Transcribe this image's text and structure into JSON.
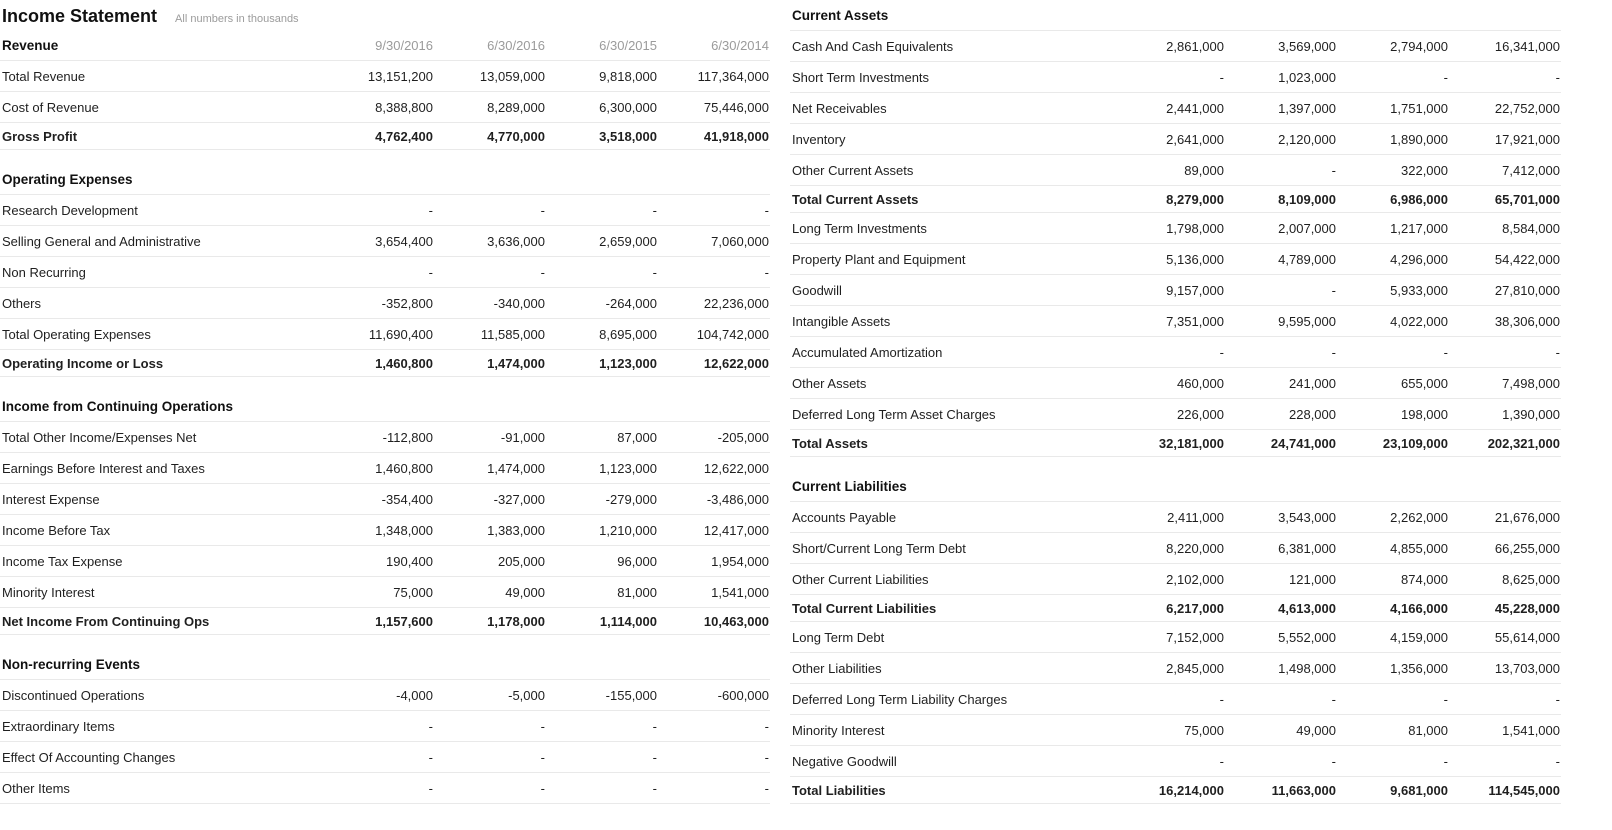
{
  "page": {
    "title": "Income Statement",
    "subtitle": "All numbers in thousands"
  },
  "columns": [
    "9/30/2016",
    "6/30/2016",
    "6/30/2015",
    "6/30/2014"
  ],
  "left_sections": [
    {
      "header": "Revenue",
      "dates_in_header": true,
      "rows": [
        {
          "label": "Total Revenue",
          "bold": false,
          "values": [
            "13,151,200",
            "13,059,000",
            "9,818,000",
            "117,364,000"
          ]
        },
        {
          "label": "Cost of Revenue",
          "bold": false,
          "values": [
            "8,388,800",
            "8,289,000",
            "6,300,000",
            "75,446,000"
          ]
        },
        {
          "label": "Gross Profit",
          "bold": true,
          "values": [
            "4,762,400",
            "4,770,000",
            "3,518,000",
            "41,918,000"
          ]
        }
      ]
    },
    {
      "header": "Operating Expenses",
      "dates_in_header": false,
      "rows": [
        {
          "label": "Research Development",
          "bold": false,
          "values": [
            "-",
            "-",
            "-",
            "-"
          ]
        },
        {
          "label": "Selling General and Administrative",
          "bold": false,
          "values": [
            "3,654,400",
            "3,636,000",
            "2,659,000",
            "7,060,000"
          ]
        },
        {
          "label": "Non Recurring",
          "bold": false,
          "values": [
            "-",
            "-",
            "-",
            "-"
          ]
        },
        {
          "label": "Others",
          "bold": false,
          "values": [
            "-352,800",
            "-340,000",
            "-264,000",
            "22,236,000"
          ]
        },
        {
          "label": "Total Operating Expenses",
          "bold": false,
          "values": [
            "11,690,400",
            "11,585,000",
            "8,695,000",
            "104,742,000"
          ]
        },
        {
          "label": "Operating Income or Loss",
          "bold": true,
          "values": [
            "1,460,800",
            "1,474,000",
            "1,123,000",
            "12,622,000"
          ]
        }
      ]
    },
    {
      "header": "Income from Continuing Operations",
      "dates_in_header": false,
      "rows": [
        {
          "label": "Total Other Income/Expenses Net",
          "bold": false,
          "values": [
            "-112,800",
            "-91,000",
            "87,000",
            "-205,000"
          ]
        },
        {
          "label": "Earnings Before Interest and Taxes",
          "bold": false,
          "values": [
            "1,460,800",
            "1,474,000",
            "1,123,000",
            "12,622,000"
          ]
        },
        {
          "label": "Interest Expense",
          "bold": false,
          "values": [
            "-354,400",
            "-327,000",
            "-279,000",
            "-3,486,000"
          ]
        },
        {
          "label": "Income Before Tax",
          "bold": false,
          "values": [
            "1,348,000",
            "1,383,000",
            "1,210,000",
            "12,417,000"
          ]
        },
        {
          "label": "Income Tax Expense",
          "bold": false,
          "values": [
            "190,400",
            "205,000",
            "96,000",
            "1,954,000"
          ]
        },
        {
          "label": "Minority Interest",
          "bold": false,
          "values": [
            "75,000",
            "49,000",
            "81,000",
            "1,541,000"
          ]
        },
        {
          "label": "Net Income From Continuing Ops",
          "bold": true,
          "values": [
            "1,157,600",
            "1,178,000",
            "1,114,000",
            "10,463,000"
          ]
        }
      ]
    },
    {
      "header": "Non-recurring Events",
      "dates_in_header": false,
      "rows": [
        {
          "label": "Discontinued Operations",
          "bold": false,
          "values": [
            "-4,000",
            "-5,000",
            "-155,000",
            "-600,000"
          ]
        },
        {
          "label": "Extraordinary Items",
          "bold": false,
          "values": [
            "-",
            "-",
            "-",
            "-"
          ]
        },
        {
          "label": "Effect Of Accounting Changes",
          "bold": false,
          "values": [
            "-",
            "-",
            "-",
            "-"
          ]
        },
        {
          "label": "Other Items",
          "bold": false,
          "values": [
            "-",
            "-",
            "-",
            "-"
          ]
        }
      ]
    }
  ],
  "right_sections": [
    {
      "header": "Current Assets",
      "dates_in_header": false,
      "rows": [
        {
          "label": "Cash And Cash Equivalents",
          "bold": false,
          "values": [
            "2,861,000",
            "3,569,000",
            "2,794,000",
            "16,341,000"
          ]
        },
        {
          "label": "Short Term Investments",
          "bold": false,
          "values": [
            "-",
            "1,023,000",
            "-",
            "-"
          ]
        },
        {
          "label": "Net Receivables",
          "bold": false,
          "values": [
            "2,441,000",
            "1,397,000",
            "1,751,000",
            "22,752,000"
          ]
        },
        {
          "label": "Inventory",
          "bold": false,
          "values": [
            "2,641,000",
            "2,120,000",
            "1,890,000",
            "17,921,000"
          ]
        },
        {
          "label": "Other Current Assets",
          "bold": false,
          "values": [
            "89,000",
            "-",
            "322,000",
            "7,412,000"
          ]
        },
        {
          "label": "Total Current Assets",
          "bold": true,
          "values": [
            "8,279,000",
            "8,109,000",
            "6,986,000",
            "65,701,000"
          ]
        },
        {
          "label": "Long Term Investments",
          "bold": false,
          "values": [
            "1,798,000",
            "2,007,000",
            "1,217,000",
            "8,584,000"
          ]
        },
        {
          "label": "Property Plant and Equipment",
          "bold": false,
          "values": [
            "5,136,000",
            "4,789,000",
            "4,296,000",
            "54,422,000"
          ]
        },
        {
          "label": "Goodwill",
          "bold": false,
          "values": [
            "9,157,000",
            "-",
            "5,933,000",
            "27,810,000"
          ]
        },
        {
          "label": "Intangible Assets",
          "bold": false,
          "values": [
            "7,351,000",
            "9,595,000",
            "4,022,000",
            "38,306,000"
          ]
        },
        {
          "label": "Accumulated Amortization",
          "bold": false,
          "values": [
            "-",
            "-",
            "-",
            "-"
          ]
        },
        {
          "label": "Other Assets",
          "bold": false,
          "values": [
            "460,000",
            "241,000",
            "655,000",
            "7,498,000"
          ]
        },
        {
          "label": "Deferred Long Term Asset Charges",
          "bold": false,
          "values": [
            "226,000",
            "228,000",
            "198,000",
            "1,390,000"
          ]
        },
        {
          "label": "Total Assets",
          "bold": true,
          "values": [
            "32,181,000",
            "24,741,000",
            "23,109,000",
            "202,321,000"
          ]
        }
      ]
    },
    {
      "header": "Current Liabilities",
      "dates_in_header": false,
      "rows": [
        {
          "label": "Accounts Payable",
          "bold": false,
          "values": [
            "2,411,000",
            "3,543,000",
            "2,262,000",
            "21,676,000"
          ]
        },
        {
          "label": "Short/Current Long Term Debt",
          "bold": false,
          "values": [
            "8,220,000",
            "6,381,000",
            "4,855,000",
            "66,255,000"
          ]
        },
        {
          "label": "Other Current Liabilities",
          "bold": false,
          "values": [
            "2,102,000",
            "121,000",
            "874,000",
            "8,625,000"
          ]
        },
        {
          "label": "Total Current Liabilities",
          "bold": true,
          "values": [
            "6,217,000",
            "4,613,000",
            "4,166,000",
            "45,228,000"
          ]
        },
        {
          "label": "Long Term Debt",
          "bold": false,
          "values": [
            "7,152,000",
            "5,552,000",
            "4,159,000",
            "55,614,000"
          ]
        },
        {
          "label": "Other Liabilities",
          "bold": false,
          "values": [
            "2,845,000",
            "1,498,000",
            "1,356,000",
            "13,703,000"
          ]
        },
        {
          "label": "Deferred Long Term Liability Charges",
          "bold": false,
          "values": [
            "-",
            "-",
            "-",
            "-"
          ]
        },
        {
          "label": "Minority Interest",
          "bold": false,
          "values": [
            "75,000",
            "49,000",
            "81,000",
            "1,541,000"
          ]
        },
        {
          "label": "Negative Goodwill",
          "bold": false,
          "values": [
            "-",
            "-",
            "-",
            "-"
          ]
        },
        {
          "label": "Total Liabilities",
          "bold": true,
          "values": [
            "16,214,000",
            "11,663,000",
            "9,681,000",
            "114,545,000"
          ]
        }
      ]
    }
  ],
  "colors": {
    "background": "#ffffff",
    "text": "#1f1f1f",
    "muted": "#9b9b9b",
    "divider": "#e9e9e9"
  }
}
